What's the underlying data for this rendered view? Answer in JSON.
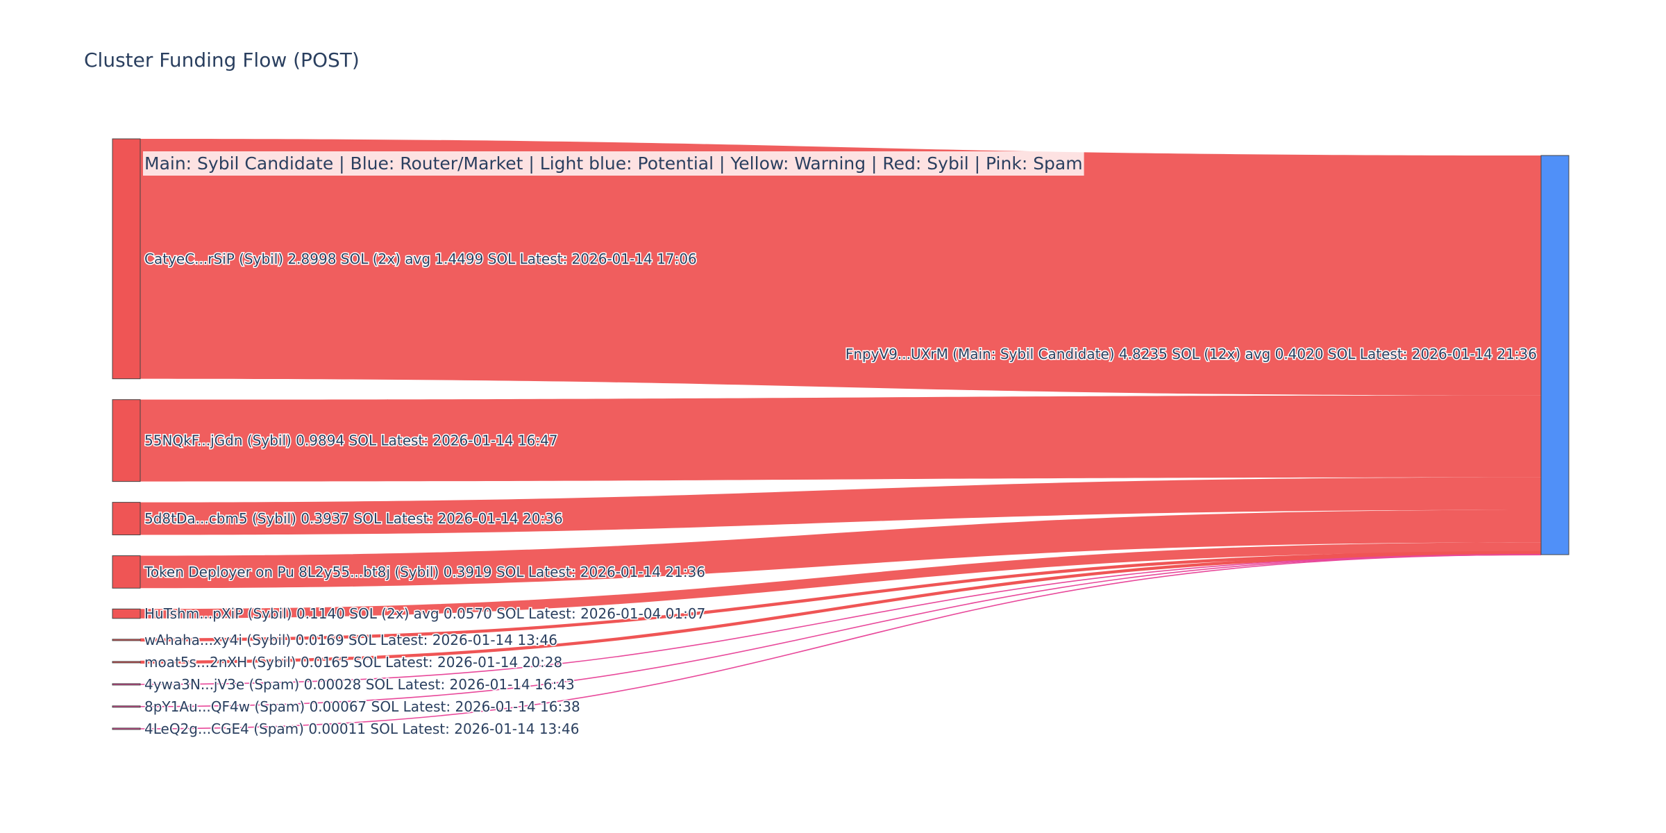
{
  "chart_data": {
    "type": "sankey",
    "title": "Cluster Funding Flow (POST)",
    "annotation": "Main: Sybil Candidate  |  Blue: Router/Market | Light blue: Potential | Yellow: Warning | Red: Sybil | Pink: Spam",
    "colors": {
      "sybil": "#ef5555",
      "spam": "#e8489a",
      "main": "#5090f8"
    },
    "target": {
      "id": "main",
      "label": "FnpyV9...UXrM (Main: Sybil Candidate) 4.8235 SOL (12x) avg 0.4020 SOL Latest: 2026-01-14 21:36",
      "value": 4.8235,
      "count": 12,
      "avg": 0.402
    },
    "sources": [
      {
        "id": "s1",
        "label": "CatyeC...rSiP (Sybil) 2.8998 SOL (2x) avg 1.4499 SOL Latest: 2026-01-14 17:06",
        "value": 2.8998,
        "category": "sybil"
      },
      {
        "id": "s2",
        "label": "55NQkF...jGdn (Sybil) 0.9894 SOL Latest: 2026-01-14 16:47",
        "value": 0.9894,
        "category": "sybil"
      },
      {
        "id": "s3",
        "label": "5d8tDa...cbm5 (Sybil) 0.3937 SOL Latest: 2026-01-14 20:36",
        "value": 0.3937,
        "category": "sybil"
      },
      {
        "id": "s4",
        "label": "Token Deployer on Pu 8L2y55...bt8j (Sybil) 0.3919 SOL Latest: 2026-01-14 21:36",
        "value": 0.3919,
        "category": "sybil"
      },
      {
        "id": "s5",
        "label": "HuTshm...pXiP (Sybil) 0.1140 SOL (2x) avg 0.0570 SOL Latest: 2026-01-04 01:07",
        "value": 0.114,
        "category": "sybil"
      },
      {
        "id": "s6",
        "label": "wAhaha...xy4i (Sybil) 0.0169 SOL Latest: 2026-01-14 13:46",
        "value": 0.0169,
        "category": "sybil"
      },
      {
        "id": "s7",
        "label": "moat5s...2nXH (Sybil) 0.0165 SOL Latest: 2026-01-14 20:28",
        "value": 0.0165,
        "category": "sybil"
      },
      {
        "id": "s8",
        "label": "4ywa3N...jV3e (Spam) 0.00028 SOL Latest: 2026-01-14 16:43",
        "value": 0.00028,
        "category": "spam"
      },
      {
        "id": "s9",
        "label": "8pY1Au...QF4w (Spam) 0.00067 SOL Latest: 2026-01-14 16:38",
        "value": 0.00067,
        "category": "spam"
      },
      {
        "id": "s10",
        "label": "4LeQ2g...CGE4 (Spam) 0.00011 SOL Latest: 2026-01-14 13:46",
        "value": 0.00011,
        "category": "spam"
      }
    ]
  }
}
